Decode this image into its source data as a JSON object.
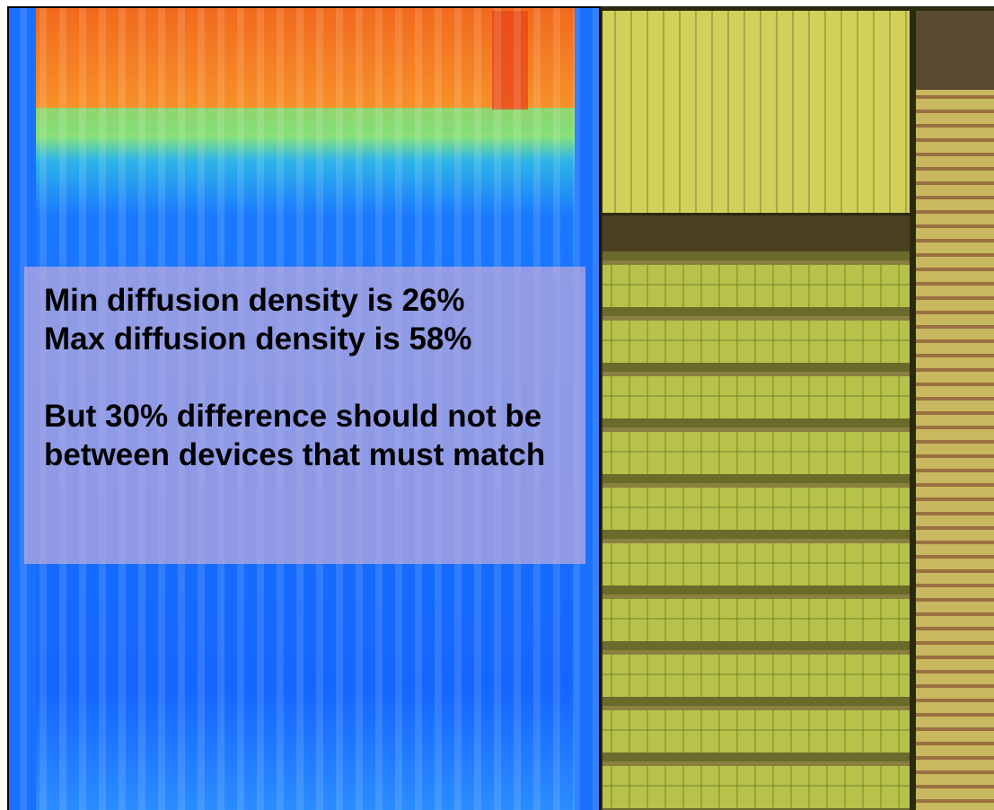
{
  "overlay": {
    "lines": [
      "Min diffusion density is 26%",
      "Max diffusion density is 58%"
    ],
    "note": "But 30% difference should not be between devices that must match"
  }
}
